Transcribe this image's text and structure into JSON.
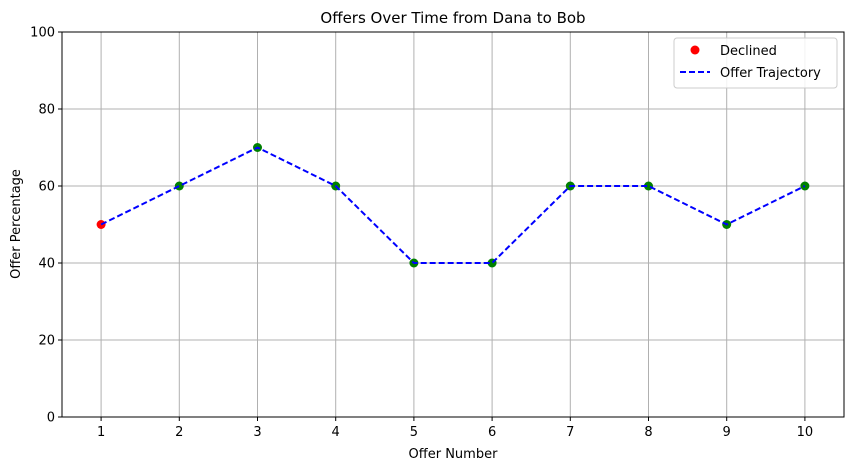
{
  "chart_data": {
    "type": "line",
    "title": "Offers Over Time from Dana to Bob",
    "xlabel": "Offer Number",
    "ylabel": "Offer Percentage",
    "x": [
      1,
      2,
      3,
      4,
      5,
      6,
      7,
      8,
      9,
      10
    ],
    "xlim": [
      0.5,
      10.5
    ],
    "ylim": [
      0,
      100
    ],
    "x_ticks": [
      1,
      2,
      3,
      4,
      5,
      6,
      7,
      8,
      9,
      10
    ],
    "y_ticks": [
      0,
      20,
      40,
      60,
      80,
      100
    ],
    "grid": true,
    "legend_position": "top-right",
    "series": [
      {
        "name": "Offer Trajectory",
        "kind": "line",
        "style": "dashed",
        "color": "#0000ff",
        "values": [
          50,
          60,
          70,
          60,
          40,
          40,
          60,
          60,
          50,
          60
        ]
      },
      {
        "name": "Declined",
        "kind": "scatter",
        "color": "#ff0000",
        "points": [
          [
            1,
            50
          ]
        ]
      },
      {
        "kind": "scatter",
        "color": "#008000",
        "points": [
          [
            2,
            60
          ],
          [
            3,
            70
          ],
          [
            4,
            60
          ],
          [
            5,
            40
          ],
          [
            6,
            40
          ],
          [
            7,
            60
          ],
          [
            8,
            60
          ],
          [
            9,
            50
          ],
          [
            10,
            60
          ]
        ]
      }
    ],
    "legend": [
      {
        "label": "Declined",
        "marker": "dot",
        "color": "#ff0000"
      },
      {
        "label": "Offer Trajectory",
        "marker": "dashed-line",
        "color": "#0000ff"
      }
    ]
  }
}
